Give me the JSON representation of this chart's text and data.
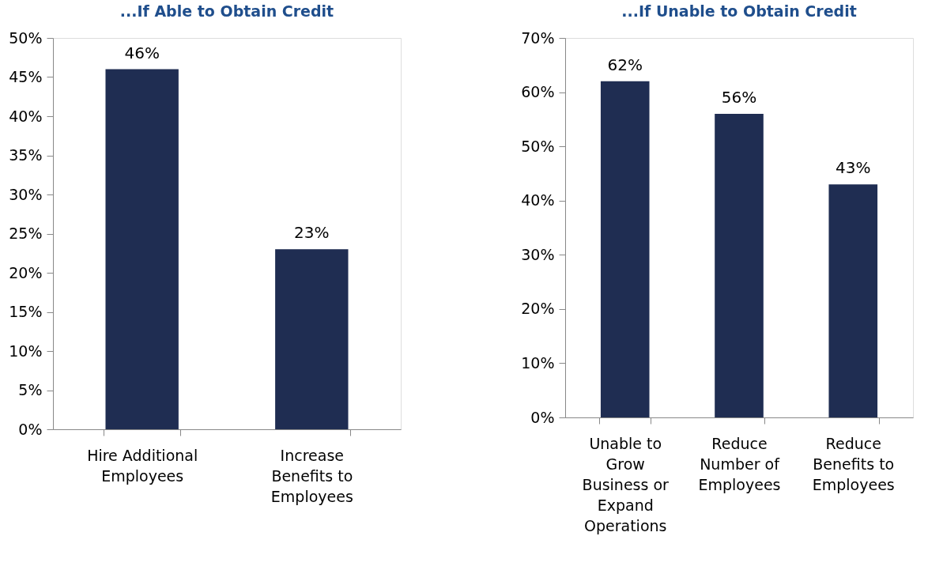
{
  "chart_data": [
    {
      "type": "bar",
      "title": "...If Able to Obtain Credit",
      "categories": [
        "Hire Additional Employees",
        "Increase Benefits to Employees"
      ],
      "series": [
        {
          "color": "#1f2d52",
          "values": [
            46,
            23
          ],
          "value_labels": [
            "46%",
            "23%"
          ]
        }
      ],
      "ylim": [
        0,
        50
      ],
      "yticks": [
        {
          "value": 0,
          "label": "0%"
        },
        {
          "value": 5,
          "label": "5%"
        },
        {
          "value": 10,
          "label": "10%"
        },
        {
          "value": 15,
          "label": "15%"
        },
        {
          "value": 20,
          "label": "20%"
        },
        {
          "value": 25,
          "label": "25%"
        },
        {
          "value": 30,
          "label": "30%"
        },
        {
          "value": 35,
          "label": "35%"
        },
        {
          "value": 40,
          "label": "40%"
        },
        {
          "value": 45,
          "label": "45%"
        },
        {
          "value": 50,
          "label": "50%"
        }
      ],
      "grid": false,
      "legend": false
    },
    {
      "type": "bar",
      "title": "...If Unable to Obtain Credit",
      "categories": [
        "Unable to Grow Business or Expand Operations",
        "Reduce Number of Employees",
        "Reduce Benefits to Employees"
      ],
      "series": [
        {
          "color": "#1f2d52",
          "values": [
            62,
            56,
            43
          ],
          "value_labels": [
            "62%",
            "56%",
            "43%"
          ]
        }
      ],
      "ylim": [
        0,
        70
      ],
      "yticks": [
        {
          "value": 0,
          "label": "0%"
        },
        {
          "value": 10,
          "label": "10%"
        },
        {
          "value": 20,
          "label": "20%"
        },
        {
          "value": 30,
          "label": "30%"
        },
        {
          "value": 40,
          "label": "40%"
        },
        {
          "value": 50,
          "label": "50%"
        },
        {
          "value": 60,
          "label": "60%"
        },
        {
          "value": 70,
          "label": "70%"
        }
      ],
      "grid": false,
      "legend": false
    }
  ]
}
